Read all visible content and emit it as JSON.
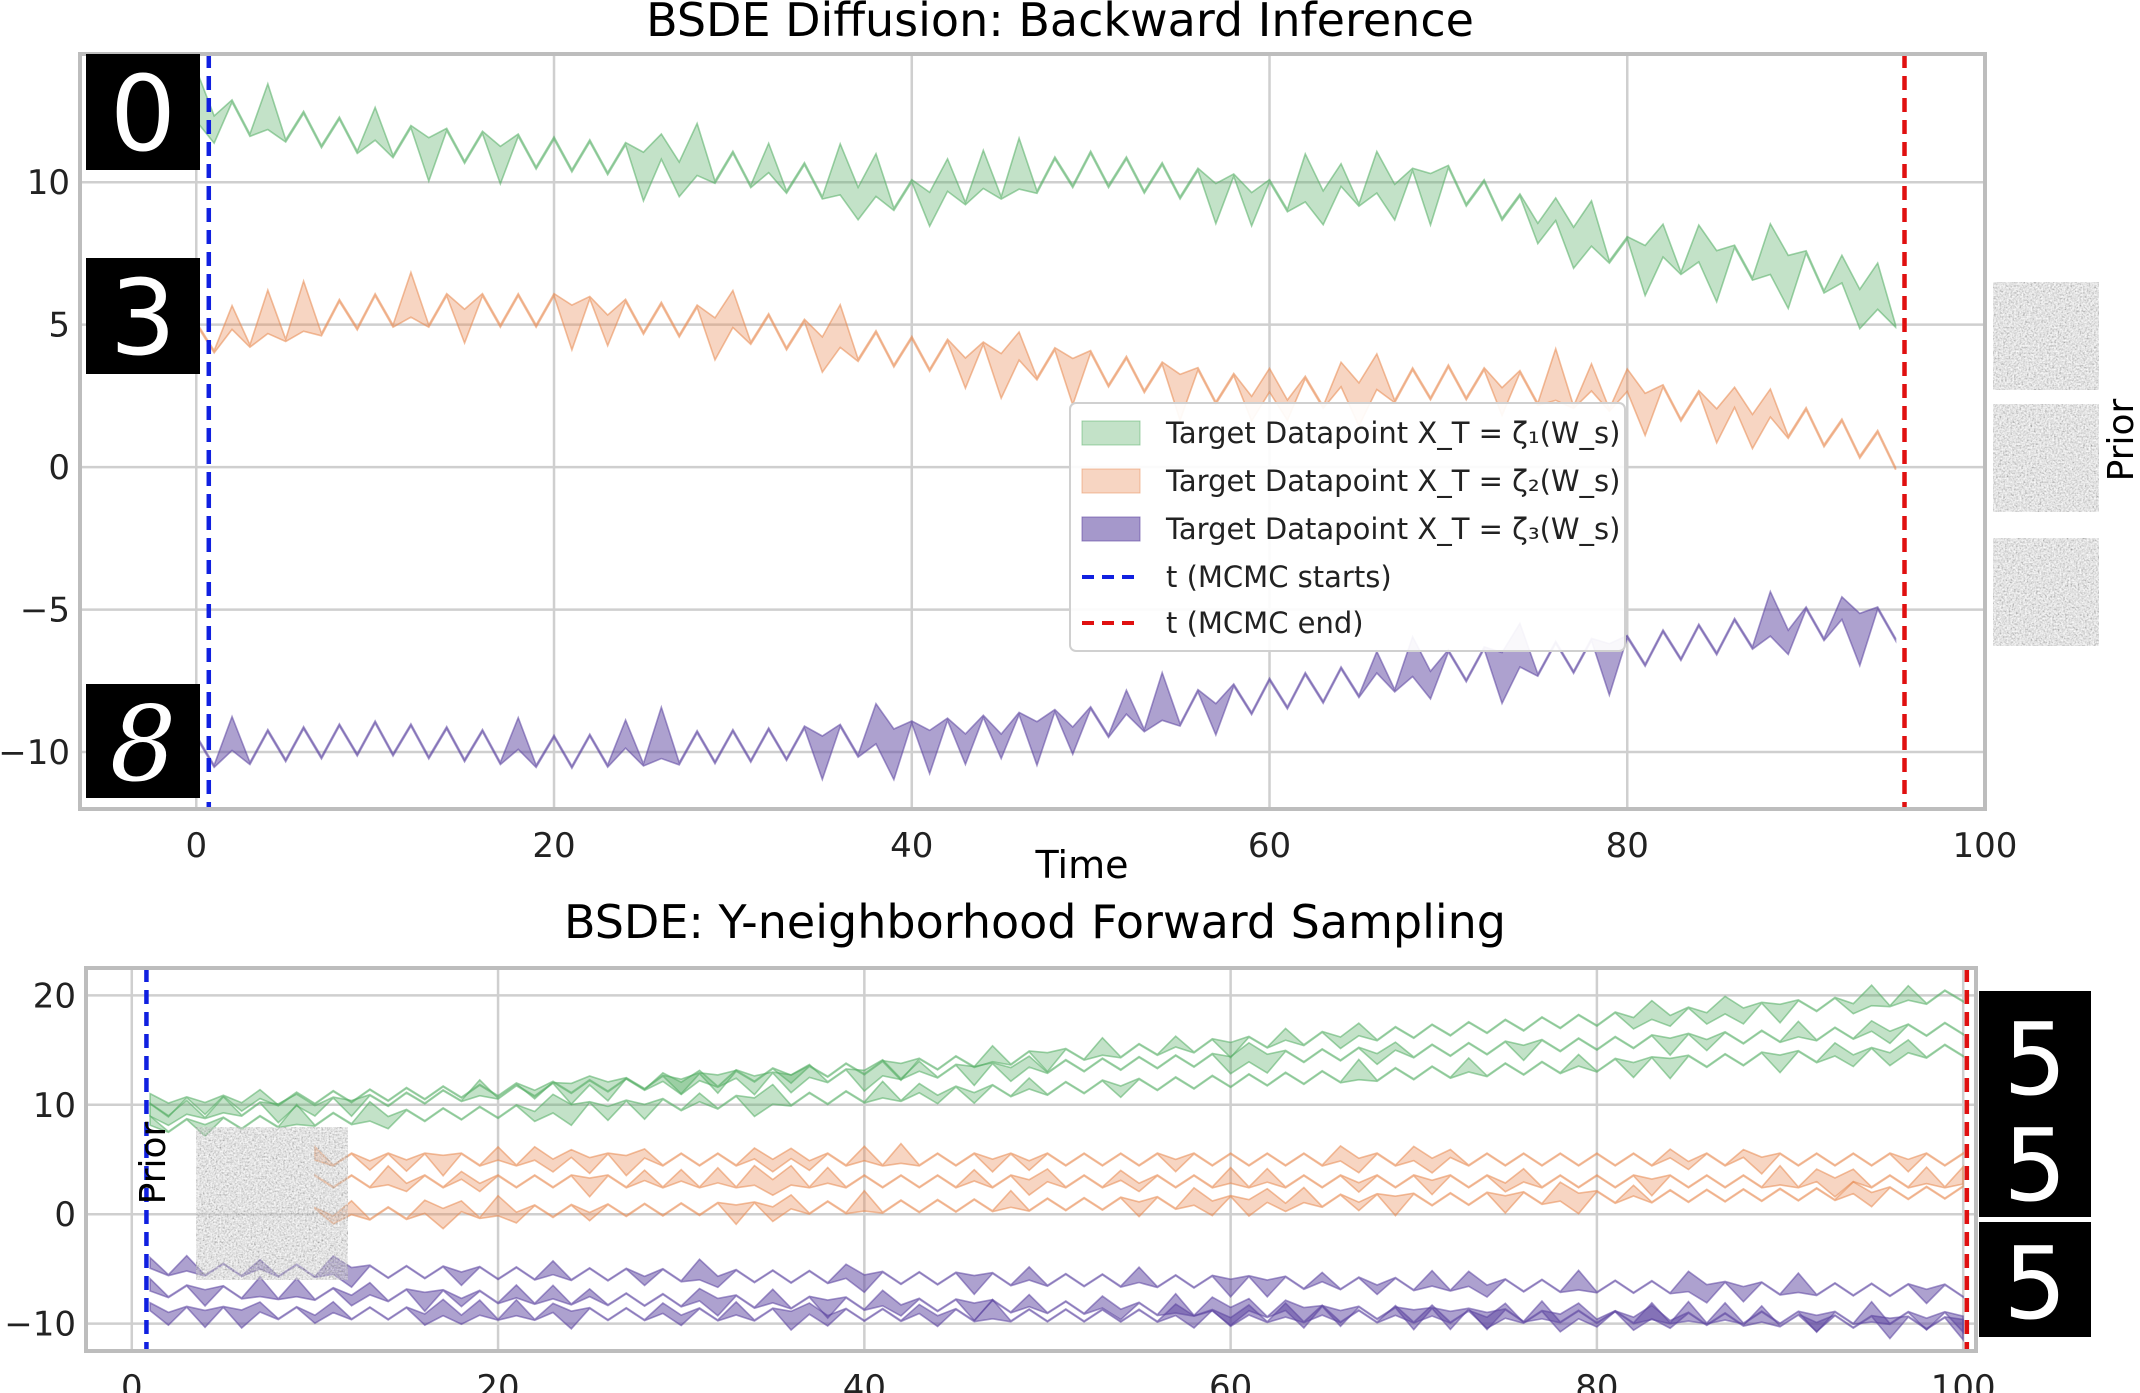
{
  "chart_data": [
    {
      "type": "area",
      "title": "BSDE Diffusion: Backward Inference",
      "xlabel": "Time",
      "ylabel": "",
      "xlim": [
        -6.5,
        100
      ],
      "ylim": [
        -12,
        14.5
      ],
      "xticks": [
        "0",
        "20",
        "40",
        "60",
        "80",
        "100"
      ],
      "yticks": [
        "−10",
        "−5",
        "0",
        "5",
        "10"
      ],
      "grid": true,
      "legend_position": "center-right",
      "series": [
        {
          "name": "Target Datapoint X_T = ζ₁(W_s)",
          "kind": "band",
          "x": [
            0,
            10,
            20,
            30,
            40,
            50,
            60,
            70,
            80,
            90,
            95
          ],
          "values": [
            12.5,
            11.5,
            11,
            10.5,
            9.5,
            10.5,
            9.5,
            10,
            7.5,
            7,
            5.5
          ]
        },
        {
          "name": "Target Datapoint X_T = ζ₂(W_s)",
          "kind": "band",
          "x": [
            0,
            10,
            20,
            30,
            40,
            50,
            60,
            70,
            80,
            90,
            95
          ],
          "values": [
            4.5,
            5.5,
            5.5,
            5,
            4,
            3.5,
            2.5,
            3,
            2.5,
            1.5,
            0.5
          ]
        },
        {
          "name": "Target Datapoint X_T = ζ₃(W_s)",
          "kind": "band",
          "x": [
            0,
            10,
            20,
            30,
            40,
            50,
            60,
            70,
            80,
            90,
            95
          ],
          "values": [
            -10,
            -9.5,
            -10,
            -9.8,
            -9.5,
            -9,
            -8,
            -7,
            -6.5,
            -5.5,
            -5.5
          ]
        },
        {
          "name": "t (MCMC starts)",
          "kind": "vline",
          "x": 0.7,
          "color": "#1020e0"
        },
        {
          "name": "t (MCMC end)",
          "kind": "vline",
          "x": 95.5,
          "color": "#e01010"
        }
      ],
      "series_colors": [
        "#52ad62",
        "#e8884f",
        "#5b43a0"
      ]
    },
    {
      "type": "area",
      "title": "BSDE: Y-neighborhood Forward Sampling",
      "xlabel": "",
      "ylabel": "",
      "xlim": [
        -2.5,
        100.7
      ],
      "ylim": [
        -12.5,
        22.5
      ],
      "xticks": [
        "0",
        "20",
        "40",
        "60",
        "80",
        "100"
      ],
      "yticks": [
        "−10",
        "0",
        "10",
        "20"
      ],
      "grid": true,
      "series": [
        {
          "name": "",
          "kind": "band",
          "group": 0,
          "x": [
            1,
            100
          ],
          "values": [
            10,
            17
          ]
        },
        {
          "name": "",
          "kind": "band",
          "group": 0,
          "x": [
            1,
            100
          ],
          "values": [
            9,
            20
          ]
        },
        {
          "name": "",
          "kind": "band",
          "group": 0,
          "x": [
            1,
            100
          ],
          "values": [
            8,
            15
          ]
        },
        {
          "name": "",
          "kind": "band",
          "group": 1,
          "x": [
            10,
            100
          ],
          "values": [
            5,
            5
          ]
        },
        {
          "name": "",
          "kind": "band",
          "group": 1,
          "x": [
            10,
            100
          ],
          "values": [
            3,
            3
          ]
        },
        {
          "name": "",
          "kind": "band",
          "group": 1,
          "x": [
            10,
            100
          ],
          "values": [
            0,
            2
          ]
        },
        {
          "name": "",
          "kind": "band",
          "group": 2,
          "x": [
            1,
            100
          ],
          "values": [
            -5,
            -7
          ]
        },
        {
          "name": "",
          "kind": "band",
          "group": 2,
          "x": [
            1,
            100
          ],
          "values": [
            -7,
            -10
          ]
        },
        {
          "name": "",
          "kind": "band",
          "group": 2,
          "x": [
            1,
            100
          ],
          "values": [
            -9,
            -9.5
          ]
        },
        {
          "name": "",
          "kind": "vline",
          "x": 0.8,
          "color": "#1020e0"
        },
        {
          "name": "",
          "kind": "vline",
          "x": 100.2,
          "color": "#e01010"
        }
      ],
      "series_colors": [
        "#52ad62",
        "#e8884f",
        "#5b43a0"
      ]
    }
  ],
  "side_labels": {
    "top_prior": "Prior",
    "bottom_prior": "Prior"
  },
  "digits": {
    "top": [
      "0",
      "3",
      "8"
    ],
    "bottom": [
      "5",
      "5",
      "5"
    ]
  }
}
